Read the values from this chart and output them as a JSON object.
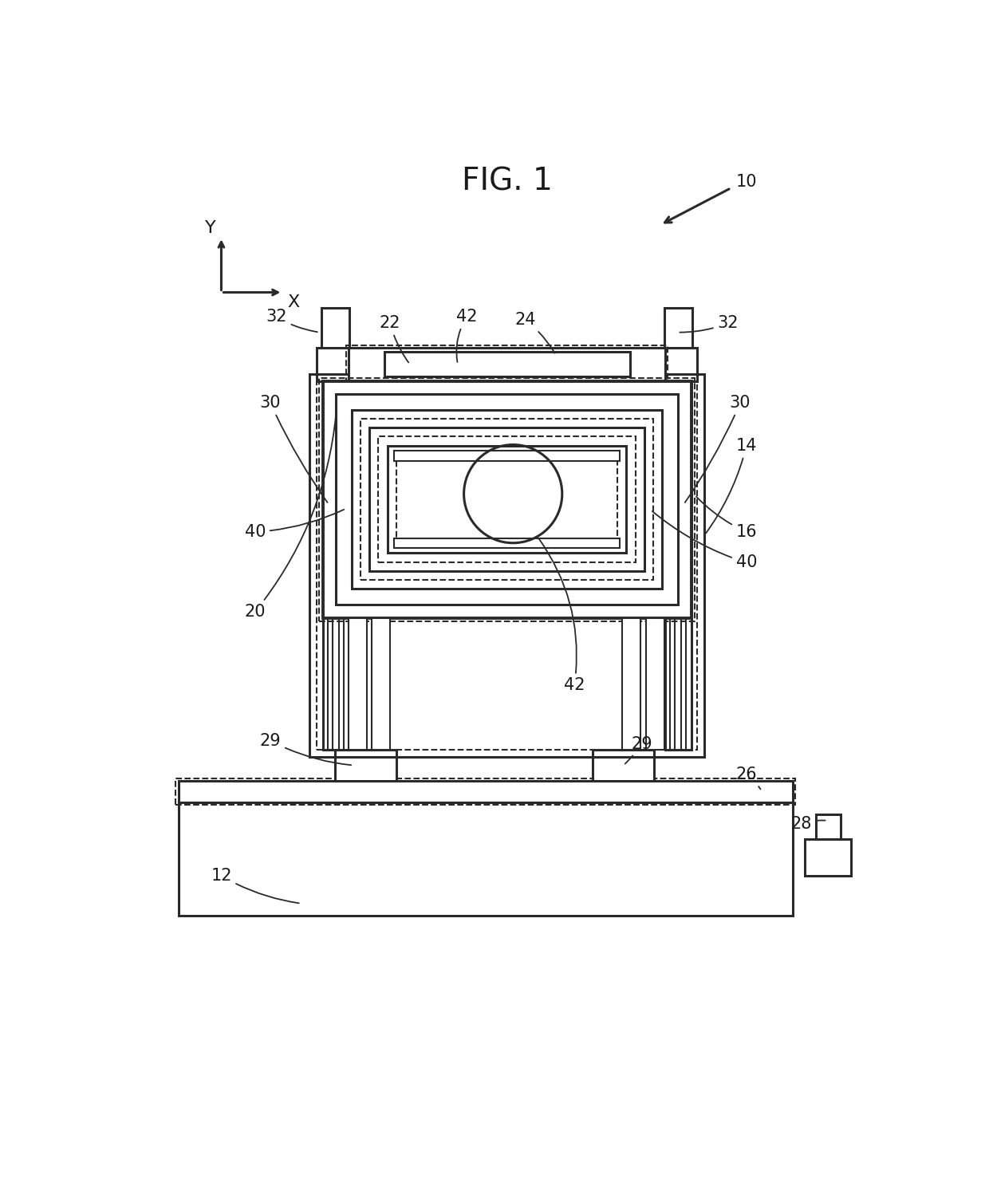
{
  "title": "FIG. 1",
  "bg_color": "#ffffff",
  "line_color": "#2a2a2a",
  "label_color": "#1a1a1a",
  "title_fontsize": 24,
  "label_fontsize": 15,
  "fig_width": 12.4,
  "fig_height": 15.02
}
